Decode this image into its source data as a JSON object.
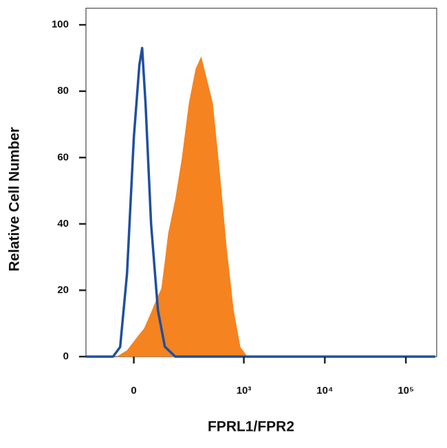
{
  "chart_data": {
    "type": "histogram-overlay",
    "xlabel": "FPRL1/FPR2",
    "ylabel": "Relative Cell Number",
    "xscale": "asinh",
    "xlim": [
      -160,
      240000
    ],
    "xticks": [
      0,
      {
        "value": 1000,
        "label": "10³"
      },
      {
        "value": 10000,
        "label": "10⁴"
      },
      {
        "value": 100000,
        "label": "10⁵"
      }
    ],
    "ylim": [
      0,
      105
    ],
    "yticks": [
      0,
      20,
      40,
      60,
      80,
      100
    ],
    "series": [
      {
        "style": "area",
        "color": "#f5831f",
        "x": [
          -45,
          -17,
          9,
          26,
          45,
          61,
          76,
          88,
          100,
          129,
          161,
          201,
          247,
          292,
          337,
          411,
          502,
          612,
          745,
          907,
          1108
        ],
        "values": [
          0,
          1.9,
          6.0,
          8.5,
          13.3,
          17.4,
          20.5,
          28.8,
          37.1,
          47.4,
          59.8,
          76.4,
          86.7,
          90.5,
          84.7,
          76.4,
          55.7,
          32.9,
          14.3,
          2.9,
          0
        ]
      },
      {
        "style": "line",
        "color": "#1f4fa0",
        "x": [
          -160,
          -88,
          -55,
          -35,
          -17,
          0,
          14,
          21,
          30,
          45,
          65,
          88,
          129,
          230000
        ],
        "values": [
          0,
          0,
          0,
          2.9,
          25,
          66,
          88,
          93,
          76,
          40,
          14,
          3,
          0,
          0
        ]
      }
    ]
  }
}
